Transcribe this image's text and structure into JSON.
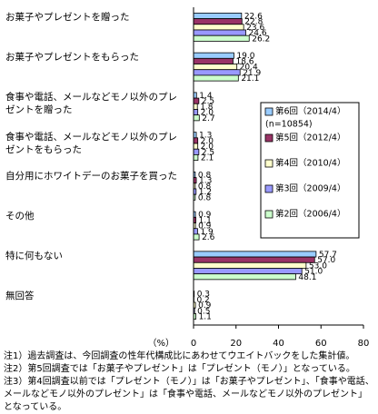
{
  "chart_data": {
    "type": "bar",
    "orientation": "horizontal",
    "categories": [
      "お菓子やプレゼントを贈った",
      "お菓子やプレゼントをもらった",
      "食事や電話、メールなどモノ以外のプレゼントを贈った",
      "食事や電話、メールなどモノ以外のプレゼントをもらった",
      "自分用にホワイトデーのお菓子を買った",
      "その他",
      "特に何もない",
      "無回答"
    ],
    "series": [
      {
        "name": "第6回（2014/4）",
        "sample": "(n=10854)",
        "color": "#99ccff",
        "values": [
          22.6,
          19.0,
          1.4,
          1.3,
          0.8,
          0.9,
          57.7,
          0.3
        ],
        "value_labels": [
          "22.6",
          "19.0",
          "1.4",
          "1.3",
          "0.8",
          "0.9",
          "57.7",
          "0.3"
        ]
      },
      {
        "name": "第5回（2012/4）",
        "color": "#993366",
        "values": [
          22.8,
          18.6,
          2.5,
          2.0,
          1.3,
          1.1,
          57.0,
          0.2
        ],
        "value_labels": [
          "22.8",
          "18.6",
          "2.5",
          "2.0",
          "1.3",
          "1.1",
          "57.0",
          "0.2"
        ]
      },
      {
        "name": "第4回（2010/4）",
        "color": "#ffffcc",
        "values": [
          23.6,
          20.4,
          1.8,
          2.0,
          0.8,
          0.9,
          53.0,
          0.9
        ],
        "value_labels": [
          "23.6",
          "20.4",
          "1.8",
          "2.0",
          "0.8",
          "0.9",
          "53.0",
          "0.9"
        ]
      },
      {
        "name": "第3回（2009/4）",
        "color": "#9999ff",
        "values": [
          24.6,
          21.9,
          2.0,
          2.5,
          1.2,
          1.9,
          51.0,
          0.5
        ],
        "value_labels": [
          "24.6",
          "21.9",
          "2.0",
          "2.5",
          "1.2",
          "1.9",
          "51.0",
          "0.5"
        ]
      },
      {
        "name": "第2回（2006/4）",
        "color": "#ccffcc",
        "values": [
          26.2,
          21.1,
          2.7,
          2.1,
          0.8,
          2.6,
          48.1,
          1.1
        ],
        "value_labels": [
          "26.2",
          "21.1",
          "2.7",
          "2.1",
          "0.8",
          "2.6",
          "48.1",
          "1.1"
        ]
      }
    ],
    "x_axis_label": "（%）",
    "xlim": [
      0,
      80
    ],
    "xticks": [
      0,
      20,
      40,
      60,
      80
    ],
    "notes": [
      "注1）過去調査は、今回調査の性年代構成比にあわせてウエイトバックをした集計値。",
      "注2）第5回調査では「お菓子やプレゼント」は「プレゼント（モノ）」となっている。",
      "注3）第4回調査以前では「プレゼント（モノ）」は「お菓子やプレゼント」、「食事や電話、メールなどモノ以外のプレゼント」は「食事や電話、メールなどモノ以外のプレゼント」となっている。"
    ]
  }
}
